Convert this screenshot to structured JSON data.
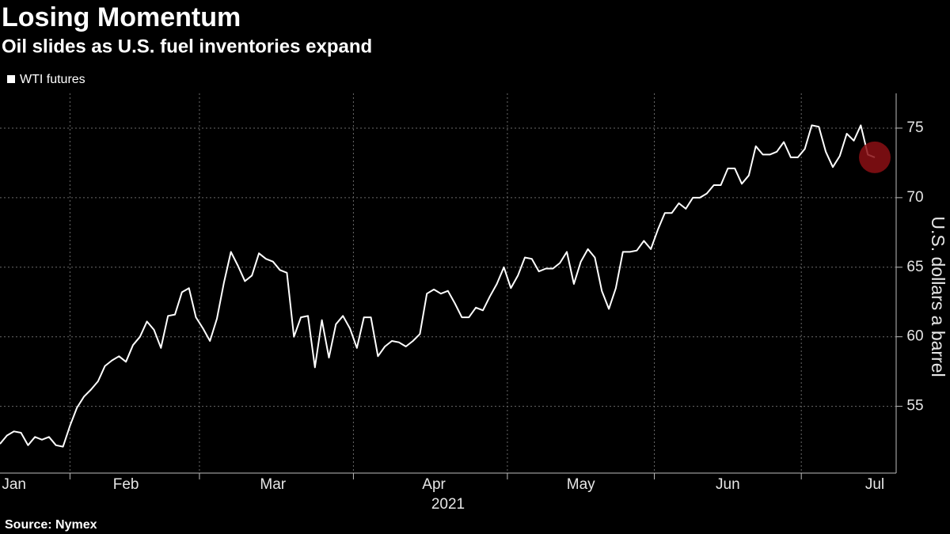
{
  "chart_data": {
    "type": "line",
    "title": "Losing Momentum",
    "subtitle": "Oil slides as U.S. fuel inventories expand",
    "ylabel": "U.S. dollars a barrel",
    "year_label": "2021",
    "source": "Source: Nymex",
    "categories": [
      null,
      null,
      "Jan",
      null,
      null,
      null,
      null,
      null,
      null,
      null,
      null,
      null,
      null,
      null,
      null,
      null,
      null,
      null,
      "Feb",
      null,
      null,
      null,
      null,
      null,
      null,
      null,
      null,
      null,
      null,
      null,
      null,
      null,
      null,
      null,
      null,
      null,
      null,
      null,
      null,
      "Mar",
      null,
      null,
      null,
      null,
      null,
      null,
      null,
      null,
      null,
      null,
      null,
      null,
      null,
      null,
      null,
      null,
      null,
      null,
      null,
      null,
      null,
      null,
      "Apr",
      null,
      null,
      null,
      null,
      null,
      null,
      null,
      null,
      null,
      null,
      null,
      null,
      null,
      null,
      null,
      null,
      null,
      null,
      null,
      null,
      "May",
      null,
      null,
      null,
      null,
      null,
      null,
      null,
      null,
      null,
      null,
      null,
      null,
      null,
      null,
      null,
      null,
      null,
      null,
      null,
      null,
      "Jun",
      null,
      null,
      null,
      null,
      null,
      null,
      null,
      null,
      null,
      null,
      null,
      null,
      null,
      null,
      null,
      null,
      null,
      null,
      null,
      null,
      "Jul"
    ],
    "series": [
      {
        "name": "WTI futures",
        "color": "#ffffff",
        "values": [
          52.3,
          52.9,
          53.2,
          53.1,
          52.2,
          52.8,
          52.6,
          52.8,
          52.2,
          52.1,
          53.6,
          54.9,
          55.7,
          56.2,
          56.8,
          57.9,
          58.3,
          58.6,
          58.2,
          59.4,
          60.0,
          61.1,
          60.5,
          59.2,
          61.5,
          61.6,
          63.2,
          63.5,
          61.4,
          60.6,
          59.7,
          61.3,
          63.9,
          66.1,
          65.1,
          64.0,
          64.4,
          66.0,
          65.6,
          65.4,
          64.8,
          64.6,
          60.0,
          61.4,
          61.5,
          57.8,
          61.2,
          58.5,
          60.9,
          61.5,
          60.6,
          59.2,
          61.4,
          61.4,
          58.6,
          59.3,
          59.7,
          59.6,
          59.3,
          59.7,
          60.2,
          63.1,
          63.4,
          63.1,
          63.3,
          62.4,
          61.4,
          61.4,
          62.1,
          61.9,
          62.9,
          63.8,
          65.0,
          63.5,
          64.4,
          65.7,
          65.6,
          64.7,
          64.9,
          64.9,
          65.3,
          66.1,
          63.8,
          65.4,
          66.3,
          65.7,
          63.3,
          62.0,
          63.5,
          66.1,
          66.1,
          66.2,
          66.9,
          66.3,
          67.7,
          68.9,
          68.9,
          69.6,
          69.2,
          70.0,
          70.0,
          70.3,
          70.9,
          70.9,
          72.1,
          72.1,
          71.0,
          71.6,
          73.7,
          73.1,
          73.1,
          73.3,
          74.0,
          72.9,
          72.9,
          73.5,
          75.2,
          75.1,
          73.3,
          72.2,
          73.0,
          74.6,
          74.1,
          75.2,
          73.1,
          72.9
        ]
      }
    ],
    "ylim": [
      50.2,
      77.5
    ],
    "yticks": [
      55,
      60,
      65,
      70,
      75
    ],
    "grid": true,
    "legend": "top-left",
    "highlight_color": "#8b0f14"
  }
}
